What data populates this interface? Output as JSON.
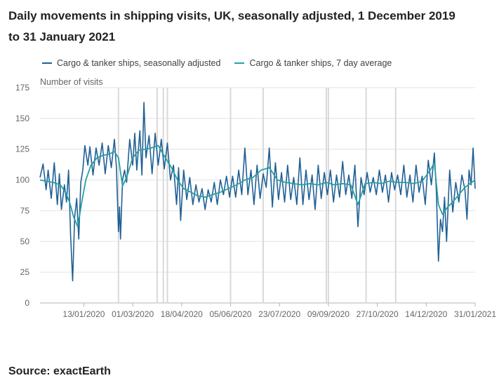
{
  "title": "Daily movements in shipping visits, UK, seasonally adjusted, 1 December 2019 to 31 January 2021",
  "source": {
    "label": "Source: exactEarth"
  },
  "colors": {
    "series1": "#206095",
    "series2": "#27a0a0",
    "grid": "#e2e2e3",
    "vline": "#d9d9d9"
  },
  "chart_data": {
    "type": "line",
    "ylabel": "Number of visits",
    "ylim": [
      0,
      175
    ],
    "yticks": [
      0,
      25,
      50,
      75,
      100,
      125,
      150,
      175
    ],
    "xlim": [
      "2019-12-01",
      "2021-01-31"
    ],
    "xticks": [
      "13/01/2020",
      "01/03/2020",
      "18/04/2020",
      "05/06/2020",
      "23/07/2020",
      "09/09/2020",
      "27/10/2020",
      "14/12/2020",
      "31/01/2021"
    ],
    "xtick_dates": [
      "2020-01-13",
      "2020-03-01",
      "2020-04-18",
      "2020-06-05",
      "2020-07-23",
      "2020-09-09",
      "2020-10-27",
      "2020-12-14",
      "2021-01-31"
    ],
    "grid": true,
    "legend_position": "top",
    "reference_lines": [
      "2020-02-16",
      "2020-03-25",
      "2020-03-31",
      "2020-04-04",
      "2020-06-05",
      "2020-07-07",
      "2020-09-07",
      "2020-09-09",
      "2020-10-16",
      "2020-11-14"
    ],
    "series": [
      {
        "name": "Cargo & tanker ships, seasonally adjusted",
        "points": [
          [
            "2019-12-01",
            102
          ],
          [
            "2019-12-04",
            113
          ],
          [
            "2019-12-07",
            92
          ],
          [
            "2019-12-09",
            108
          ],
          [
            "2019-12-12",
            85
          ],
          [
            "2019-12-15",
            114
          ],
          [
            "2019-12-18",
            80
          ],
          [
            "2019-12-20",
            105
          ],
          [
            "2019-12-22",
            76
          ],
          [
            "2019-12-25",
            96
          ],
          [
            "2019-12-27",
            82
          ],
          [
            "2019-12-29",
            108
          ],
          [
            "2019-12-31",
            55
          ],
          [
            "2020-01-02",
            18
          ],
          [
            "2020-01-04",
            70
          ],
          [
            "2020-01-06",
            85
          ],
          [
            "2020-01-08",
            52
          ],
          [
            "2020-01-10",
            98
          ],
          [
            "2020-01-12",
            108
          ],
          [
            "2020-01-14",
            128
          ],
          [
            "2020-01-17",
            112
          ],
          [
            "2020-01-19",
            127
          ],
          [
            "2020-01-22",
            104
          ],
          [
            "2020-01-25",
            126
          ],
          [
            "2020-01-28",
            112
          ],
          [
            "2020-01-31",
            130
          ],
          [
            "2020-02-03",
            105
          ],
          [
            "2020-02-06",
            128
          ],
          [
            "2020-02-09",
            110
          ],
          [
            "2020-02-12",
            133
          ],
          [
            "2020-02-14",
            110
          ],
          [
            "2020-02-16",
            58
          ],
          [
            "2020-02-17",
            78
          ],
          [
            "2020-02-18",
            52
          ],
          [
            "2020-02-20",
            100
          ],
          [
            "2020-02-22",
            108
          ],
          [
            "2020-02-24",
            98
          ],
          [
            "2020-02-27",
            133
          ],
          [
            "2020-03-01",
            112
          ],
          [
            "2020-03-03",
            138
          ],
          [
            "2020-03-05",
            108
          ],
          [
            "2020-03-08",
            140
          ],
          [
            "2020-03-10",
            104
          ],
          [
            "2020-03-12",
            163
          ],
          [
            "2020-03-14",
            118
          ],
          [
            "2020-03-17",
            136
          ],
          [
            "2020-03-20",
            105
          ],
          [
            "2020-03-23",
            138
          ],
          [
            "2020-03-26",
            112
          ],
          [
            "2020-03-29",
            133
          ],
          [
            "2020-04-01",
            109
          ],
          [
            "2020-04-04",
            130
          ],
          [
            "2020-04-07",
            100
          ],
          [
            "2020-04-10",
            112
          ],
          [
            "2020-04-13",
            80
          ],
          [
            "2020-04-15",
            110
          ],
          [
            "2020-04-17",
            67
          ],
          [
            "2020-04-20",
            108
          ],
          [
            "2020-04-23",
            84
          ],
          [
            "2020-04-26",
            102
          ],
          [
            "2020-04-29",
            80
          ],
          [
            "2020-05-02",
            96
          ],
          [
            "2020-05-05",
            82
          ],
          [
            "2020-05-08",
            93
          ],
          [
            "2020-05-11",
            76
          ],
          [
            "2020-05-14",
            92
          ],
          [
            "2020-05-17",
            82
          ],
          [
            "2020-05-20",
            98
          ],
          [
            "2020-05-23",
            80
          ],
          [
            "2020-05-26",
            100
          ],
          [
            "2020-05-29",
            88
          ],
          [
            "2020-06-01",
            103
          ],
          [
            "2020-06-04",
            86
          ],
          [
            "2020-06-07",
            103
          ],
          [
            "2020-06-10",
            86
          ],
          [
            "2020-06-13",
            108
          ],
          [
            "2020-06-16",
            88
          ],
          [
            "2020-06-19",
            126
          ],
          [
            "2020-06-22",
            88
          ],
          [
            "2020-06-25",
            108
          ],
          [
            "2020-06-28",
            80
          ],
          [
            "2020-07-01",
            112
          ],
          [
            "2020-07-04",
            85
          ],
          [
            "2020-07-07",
            105
          ],
          [
            "2020-07-10",
            94
          ],
          [
            "2020-07-13",
            126
          ],
          [
            "2020-07-16",
            78
          ],
          [
            "2020-07-19",
            114
          ],
          [
            "2020-07-22",
            84
          ],
          [
            "2020-07-25",
            106
          ],
          [
            "2020-07-28",
            82
          ],
          [
            "2020-07-31",
            112
          ],
          [
            "2020-08-03",
            84
          ],
          [
            "2020-08-06",
            102
          ],
          [
            "2020-08-09",
            80
          ],
          [
            "2020-08-12",
            118
          ],
          [
            "2020-08-15",
            80
          ],
          [
            "2020-08-18",
            108
          ],
          [
            "2020-08-21",
            84
          ],
          [
            "2020-08-24",
            104
          ],
          [
            "2020-08-27",
            76
          ],
          [
            "2020-08-30",
            112
          ],
          [
            "2020-09-02",
            85
          ],
          [
            "2020-09-05",
            106
          ],
          [
            "2020-09-08",
            88
          ],
          [
            "2020-09-11",
            108
          ],
          [
            "2020-09-14",
            82
          ],
          [
            "2020-09-17",
            104
          ],
          [
            "2020-09-20",
            86
          ],
          [
            "2020-09-23",
            115
          ],
          [
            "2020-09-26",
            88
          ],
          [
            "2020-09-29",
            104
          ],
          [
            "2020-10-02",
            85
          ],
          [
            "2020-10-05",
            112
          ],
          [
            "2020-10-08",
            62
          ],
          [
            "2020-10-11",
            102
          ],
          [
            "2020-10-14",
            88
          ],
          [
            "2020-10-17",
            106
          ],
          [
            "2020-10-20",
            90
          ],
          [
            "2020-10-23",
            102
          ],
          [
            "2020-10-26",
            88
          ],
          [
            "2020-10-29",
            108
          ],
          [
            "2020-11-01",
            90
          ],
          [
            "2020-11-04",
            104
          ],
          [
            "2020-11-07",
            82
          ],
          [
            "2020-11-10",
            106
          ],
          [
            "2020-11-13",
            92
          ],
          [
            "2020-11-16",
            104
          ],
          [
            "2020-11-19",
            88
          ],
          [
            "2020-11-22",
            112
          ],
          [
            "2020-11-25",
            86
          ],
          [
            "2020-11-28",
            104
          ],
          [
            "2020-12-01",
            82
          ],
          [
            "2020-12-04",
            112
          ],
          [
            "2020-12-07",
            90
          ],
          [
            "2020-12-10",
            103
          ],
          [
            "2020-12-13",
            80
          ],
          [
            "2020-12-16",
            116
          ],
          [
            "2020-12-19",
            96
          ],
          [
            "2020-12-22",
            122
          ],
          [
            "2020-12-24",
            90
          ],
          [
            "2020-12-26",
            34
          ],
          [
            "2020-12-28",
            68
          ],
          [
            "2020-12-30",
            58
          ],
          [
            "2021-01-01",
            86
          ],
          [
            "2021-01-03",
            50
          ],
          [
            "2021-01-06",
            108
          ],
          [
            "2021-01-09",
            74
          ],
          [
            "2021-01-12",
            98
          ],
          [
            "2021-01-15",
            82
          ],
          [
            "2021-01-18",
            104
          ],
          [
            "2021-01-21",
            92
          ],
          [
            "2021-01-23",
            68
          ],
          [
            "2021-01-25",
            108
          ],
          [
            "2021-01-27",
            96
          ],
          [
            "2021-01-29",
            126
          ],
          [
            "2021-01-31",
            93
          ]
        ]
      },
      {
        "name": "Cargo & tanker ships, 7 day average",
        "points": [
          [
            "2019-12-01",
            100
          ],
          [
            "2019-12-07",
            99
          ],
          [
            "2019-12-14",
            98
          ],
          [
            "2019-12-21",
            96
          ],
          [
            "2019-12-26",
            90
          ],
          [
            "2019-12-30",
            82
          ],
          [
            "2020-01-03",
            70
          ],
          [
            "2020-01-07",
            62
          ],
          [
            "2020-01-11",
            82
          ],
          [
            "2020-01-15",
            100
          ],
          [
            "2020-01-20",
            112
          ],
          [
            "2020-01-26",
            118
          ],
          [
            "2020-02-01",
            120
          ],
          [
            "2020-02-07",
            121
          ],
          [
            "2020-02-12",
            123
          ],
          [
            "2020-02-16",
            118
          ],
          [
            "2020-02-20",
            95
          ],
          [
            "2020-02-24",
            102
          ],
          [
            "2020-03-01",
            118
          ],
          [
            "2020-03-07",
            124
          ],
          [
            "2020-03-13",
            125
          ],
          [
            "2020-03-19",
            126
          ],
          [
            "2020-03-26",
            128
          ],
          [
            "2020-04-02",
            118
          ],
          [
            "2020-04-08",
            110
          ],
          [
            "2020-04-14",
            100
          ],
          [
            "2020-04-20",
            93
          ],
          [
            "2020-04-27",
            90
          ],
          [
            "2020-05-04",
            87
          ],
          [
            "2020-05-11",
            86
          ],
          [
            "2020-05-18",
            88
          ],
          [
            "2020-05-26",
            90
          ],
          [
            "2020-06-03",
            93
          ],
          [
            "2020-06-11",
            96
          ],
          [
            "2020-06-19",
            100
          ],
          [
            "2020-06-27",
            102
          ],
          [
            "2020-07-05",
            108
          ],
          [
            "2020-07-13",
            110
          ],
          [
            "2020-07-21",
            100
          ],
          [
            "2020-07-29",
            98
          ],
          [
            "2020-08-06",
            97
          ],
          [
            "2020-08-14",
            96
          ],
          [
            "2020-08-22",
            97
          ],
          [
            "2020-08-30",
            96
          ],
          [
            "2020-09-07",
            98
          ],
          [
            "2020-09-15",
            96
          ],
          [
            "2020-09-23",
            97
          ],
          [
            "2020-10-01",
            96
          ],
          [
            "2020-10-08",
            80
          ],
          [
            "2020-10-15",
            97
          ],
          [
            "2020-10-23",
            98
          ],
          [
            "2020-10-31",
            97
          ],
          [
            "2020-11-08",
            99
          ],
          [
            "2020-11-16",
            98
          ],
          [
            "2020-11-24",
            98
          ],
          [
            "2020-12-02",
            97
          ],
          [
            "2020-12-10",
            99
          ],
          [
            "2020-12-18",
            108
          ],
          [
            "2020-12-22",
            114
          ],
          [
            "2020-12-26",
            80
          ],
          [
            "2020-12-30",
            72
          ],
          [
            "2021-01-04",
            78
          ],
          [
            "2021-01-09",
            82
          ],
          [
            "2021-01-15",
            88
          ],
          [
            "2021-01-21",
            94
          ],
          [
            "2021-01-26",
            97
          ],
          [
            "2021-01-31",
            100
          ]
        ]
      }
    ]
  }
}
